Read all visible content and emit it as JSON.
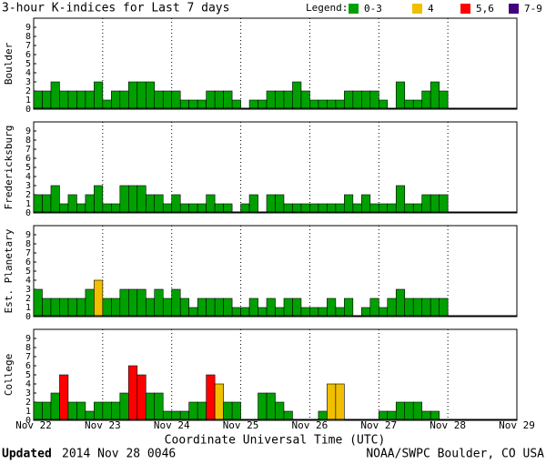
{
  "chart_data": {
    "type": "bar",
    "title": "3-hour K-indices for Last 7 days",
    "legend_title": "Legend:",
    "legend": [
      {
        "label": "0-3",
        "color": "#00a000"
      },
      {
        "label": "4",
        "color": "#f0c000"
      },
      {
        "label": "5,6",
        "color": "#ff0000"
      },
      {
        "label": "7-9",
        "color": "#400080"
      }
    ],
    "xticks": [
      "Nov 22",
      "Nov 23",
      "Nov 24",
      "Nov 25",
      "Nov 26",
      "Nov 27",
      "Nov 28",
      "Nov 29"
    ],
    "xlabel": "Coordinate Universal Time (UTC)",
    "ylim": [
      0,
      9
    ],
    "yticks": [
      0,
      1,
      2,
      3,
      4,
      5,
      6,
      7,
      8,
      9
    ],
    "grid": true,
    "series": [
      {
        "name": "Boulder",
        "values": [
          2,
          2,
          3,
          2,
          2,
          2,
          2,
          3,
          1,
          2,
          2,
          3,
          3,
          3,
          2,
          2,
          2,
          1,
          1,
          1,
          2,
          2,
          2,
          1,
          0,
          1,
          1,
          2,
          2,
          2,
          3,
          2,
          1,
          1,
          1,
          1,
          2,
          2,
          2,
          2,
          1,
          0,
          3,
          1,
          1,
          2,
          3,
          2,
          null,
          null,
          null,
          null,
          null,
          null,
          null,
          null
        ]
      },
      {
        "name": "Fredericksburg",
        "values": [
          2,
          2,
          3,
          1,
          2,
          1,
          2,
          3,
          1,
          1,
          3,
          3,
          3,
          2,
          2,
          1,
          2,
          1,
          1,
          1,
          2,
          1,
          1,
          0,
          1,
          2,
          0,
          2,
          2,
          1,
          1,
          1,
          1,
          1,
          1,
          1,
          2,
          1,
          2,
          1,
          1,
          1,
          3,
          1,
          1,
          2,
          2,
          2,
          null,
          null,
          null,
          null,
          null,
          null,
          null,
          null
        ]
      },
      {
        "name": "Est. Planetary",
        "values": [
          3,
          2,
          2,
          2,
          2,
          2,
          3,
          4,
          2,
          2,
          3,
          3,
          3,
          2,
          3,
          2,
          3,
          2,
          1,
          2,
          2,
          2,
          2,
          1,
          1,
          2,
          1,
          2,
          1,
          2,
          2,
          1,
          1,
          1,
          2,
          1,
          2,
          0,
          1,
          2,
          1,
          2,
          3,
          2,
          2,
          2,
          2,
          2,
          null,
          null,
          null,
          null,
          null,
          null,
          null,
          null
        ]
      },
      {
        "name": "College",
        "values": [
          2,
          2,
          3,
          5,
          2,
          2,
          1,
          2,
          2,
          2,
          3,
          6,
          5,
          3,
          3,
          1,
          1,
          1,
          2,
          2,
          5,
          4,
          2,
          2,
          0,
          0,
          3,
          3,
          2,
          1,
          0,
          0,
          0,
          1,
          4,
          4,
          0,
          0,
          0,
          0,
          1,
          1,
          2,
          2,
          2,
          1,
          1,
          0,
          null,
          null,
          null,
          null,
          null,
          null,
          null,
          null
        ]
      }
    ],
    "updated_label": "Updated",
    "updated_time": "2014 Nov 28 0046",
    "credit": "NOAA/SWPC Boulder, CO USA"
  }
}
